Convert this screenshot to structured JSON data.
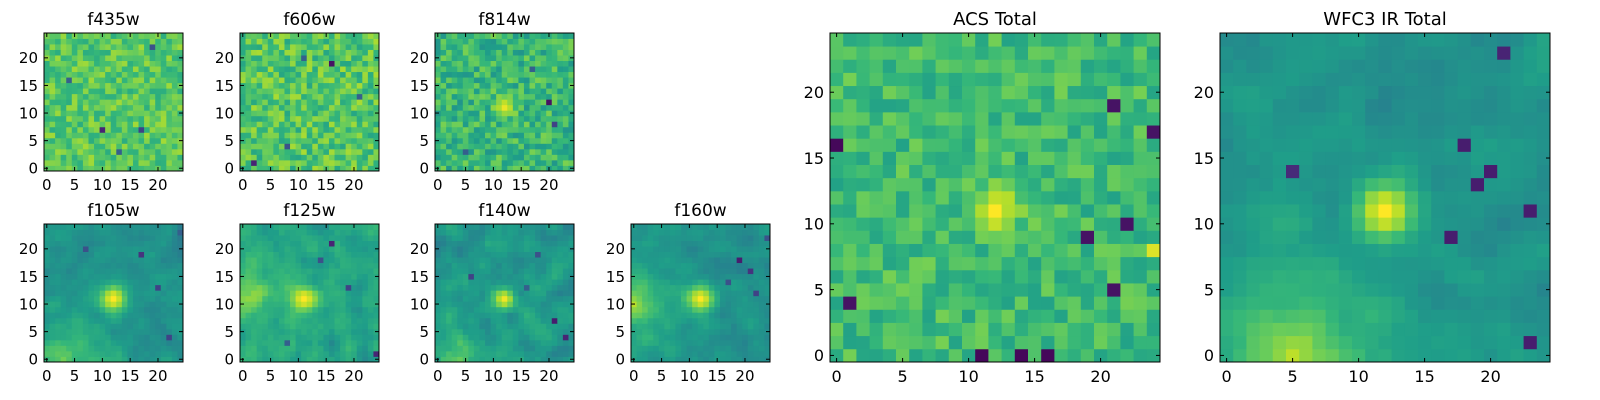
{
  "colormap": {
    "name": "viridis",
    "stops": [
      "#440154",
      "#482878",
      "#3e4989",
      "#31688e",
      "#26828e",
      "#1f9e89",
      "#35b779",
      "#6ece58",
      "#b5de2b",
      "#fde725"
    ]
  },
  "chart_data": [
    {
      "type": "heatmap",
      "title": "f435w",
      "grid_size": 25,
      "xlim": [
        0,
        24
      ],
      "ylim": [
        0,
        24
      ],
      "xticks": [
        0,
        5,
        10,
        15,
        20
      ],
      "yticks": [
        0,
        5,
        10,
        15,
        20
      ],
      "style": "noise",
      "seed": 11,
      "base": 0.74,
      "noise": 0.12,
      "source": null,
      "gradient": null,
      "spots": [
        [
          10,
          7,
          0.1
        ],
        [
          17,
          7,
          0.2
        ],
        [
          4,
          16,
          0.3
        ],
        [
          19,
          22,
          0.25
        ],
        [
          13,
          3,
          0.3
        ]
      ]
    },
    {
      "type": "heatmap",
      "title": "f606w",
      "grid_size": 25,
      "xlim": [
        0,
        24
      ],
      "ylim": [
        0,
        24
      ],
      "xticks": [
        0,
        5,
        10,
        15,
        20
      ],
      "yticks": [
        0,
        5,
        10,
        15,
        20
      ],
      "style": "noise",
      "seed": 23,
      "base": 0.73,
      "noise": 0.14,
      "source": null,
      "gradient": null,
      "spots": [
        [
          16,
          19,
          0.05
        ],
        [
          2,
          1,
          0.1
        ],
        [
          8,
          4,
          0.25
        ],
        [
          21,
          13,
          0.3
        ],
        [
          11,
          20,
          0.3
        ]
      ]
    },
    {
      "type": "heatmap",
      "title": "f814w",
      "grid_size": 25,
      "xlim": [
        0,
        24
      ],
      "ylim": [
        0,
        24
      ],
      "xticks": [
        0,
        5,
        10,
        15,
        20
      ],
      "yticks": [
        0,
        5,
        10,
        15,
        20
      ],
      "style": "noise",
      "seed": 37,
      "base": 0.66,
      "noise": 0.14,
      "source": {
        "x": 12,
        "y": 11,
        "peak": 0.97,
        "sigma": 1.2
      },
      "gradient": null,
      "spots": [
        [
          20,
          12,
          0.05
        ],
        [
          21,
          8,
          0.2
        ],
        [
          17,
          18,
          0.3
        ],
        [
          5,
          3,
          0.3
        ]
      ]
    },
    {
      "type": "heatmap",
      "title": "f105w",
      "grid_size": 25,
      "xlim": [
        0,
        24
      ],
      "ylim": [
        0,
        24
      ],
      "xticks": [
        0,
        5,
        10,
        15,
        20
      ],
      "yticks": [
        0,
        5,
        10,
        15,
        20
      ],
      "style": "smooth",
      "seed": 53,
      "base": 0.5,
      "noise": 0.07,
      "source": {
        "x": 12,
        "y": 11,
        "peak": 1.0,
        "sigma": 1.6
      },
      "gradient": {
        "x0": 3,
        "y0": 0,
        "amp": 0.3,
        "scale": 6
      },
      "spots": [
        [
          17,
          19,
          0.15
        ],
        [
          20,
          13,
          0.2
        ],
        [
          22,
          4,
          0.2
        ],
        [
          7,
          20,
          0.25
        ],
        [
          24,
          23,
          0.3
        ]
      ]
    },
    {
      "type": "heatmap",
      "title": "f125w",
      "grid_size": 25,
      "xlim": [
        0,
        24
      ],
      "ylim": [
        0,
        24
      ],
      "xticks": [
        0,
        5,
        10,
        15,
        20
      ],
      "yticks": [
        0,
        5,
        10,
        15,
        20
      ],
      "style": "smooth",
      "seed": 67,
      "base": 0.58,
      "noise": 0.1,
      "source": {
        "x": 11,
        "y": 11,
        "peak": 1.0,
        "sigma": 1.5
      },
      "gradient": {
        "x0": 0,
        "y0": 11,
        "amp": 0.25,
        "scale": 5
      },
      "spots": [
        [
          16,
          21,
          0.1
        ],
        [
          24,
          1,
          0.1
        ],
        [
          19,
          13,
          0.2
        ],
        [
          14,
          18,
          0.25
        ],
        [
          8,
          3,
          0.3
        ]
      ]
    },
    {
      "type": "heatmap",
      "title": "f140w",
      "grid_size": 25,
      "xlim": [
        0,
        24
      ],
      "ylim": [
        0,
        24
      ],
      "xticks": [
        0,
        5,
        10,
        15,
        20
      ],
      "yticks": [
        0,
        5,
        10,
        15,
        20
      ],
      "style": "smooth",
      "seed": 79,
      "base": 0.52,
      "noise": 0.1,
      "source": {
        "x": 12,
        "y": 11,
        "peak": 0.98,
        "sigma": 1.3
      },
      "gradient": {
        "x0": 4,
        "y0": 0,
        "amp": 0.25,
        "scale": 5
      },
      "spots": [
        [
          21,
          7,
          0.08
        ],
        [
          23,
          4,
          0.1
        ],
        [
          6,
          15,
          0.2
        ],
        [
          18,
          19,
          0.25
        ],
        [
          16,
          13,
          0.3
        ]
      ]
    },
    {
      "type": "heatmap",
      "title": "f160w",
      "grid_size": 25,
      "xlim": [
        0,
        24
      ],
      "ylim": [
        0,
        24
      ],
      "xticks": [
        0,
        5,
        10,
        15,
        20
      ],
      "yticks": [
        0,
        5,
        10,
        15,
        20
      ],
      "style": "smooth",
      "seed": 97,
      "base": 0.5,
      "noise": 0.07,
      "source": {
        "x": 12,
        "y": 11,
        "peak": 1.0,
        "sigma": 1.6
      },
      "gradient": {
        "x0": 0,
        "y0": 10,
        "amp": 0.35,
        "scale": 5
      },
      "spots": [
        [
          19,
          18,
          0.08
        ],
        [
          21,
          16,
          0.15
        ],
        [
          22,
          12,
          0.2
        ],
        [
          17,
          14,
          0.25
        ],
        [
          24,
          22,
          0.25
        ]
      ]
    },
    {
      "type": "heatmap",
      "title": "ACS Total",
      "grid_size": 25,
      "xlim": [
        0,
        24
      ],
      "ylim": [
        0,
        24
      ],
      "xticks": [
        0,
        5,
        10,
        15,
        20
      ],
      "yticks": [
        0,
        5,
        10,
        15,
        20
      ],
      "style": "noise",
      "seed": 131,
      "base": 0.68,
      "noise": 0.11,
      "source": {
        "x": 12,
        "y": 11,
        "peak": 1.0,
        "sigma": 1.2
      },
      "gradient": null,
      "spots": [
        [
          0,
          16,
          0.02
        ],
        [
          1,
          4,
          0.05
        ],
        [
          11,
          0,
          0.02
        ],
        [
          14,
          0,
          0.02
        ],
        [
          16,
          0,
          0.02
        ],
        [
          19,
          9,
          0.05
        ],
        [
          21,
          5,
          0.05
        ],
        [
          24,
          17,
          0.05
        ],
        [
          21,
          19,
          0.05
        ],
        [
          22,
          10,
          0.05
        ],
        [
          24,
          8,
          0.95
        ]
      ]
    },
    {
      "type": "heatmap",
      "title": "WFC3 IR Total",
      "grid_size": 25,
      "xlim": [
        0,
        24
      ],
      "ylim": [
        0,
        24
      ],
      "xticks": [
        0,
        5,
        10,
        15,
        20
      ],
      "yticks": [
        0,
        5,
        10,
        15,
        20
      ],
      "style": "smooth",
      "seed": 173,
      "base": 0.5,
      "noise": 0.07,
      "source": {
        "x": 12,
        "y": 11,
        "peak": 1.0,
        "sigma": 1.5
      },
      "gradient": {
        "x0": 5,
        "y0": 0,
        "amp": 0.4,
        "scale": 5
      },
      "spots": [
        [
          5,
          14,
          0.12
        ],
        [
          19,
          13,
          0.08
        ],
        [
          20,
          14,
          0.08
        ],
        [
          17,
          9,
          0.08
        ],
        [
          18,
          16,
          0.08
        ],
        [
          23,
          11,
          0.08
        ],
        [
          23,
          1,
          0.08
        ],
        [
          21,
          23,
          0.1
        ]
      ]
    }
  ]
}
